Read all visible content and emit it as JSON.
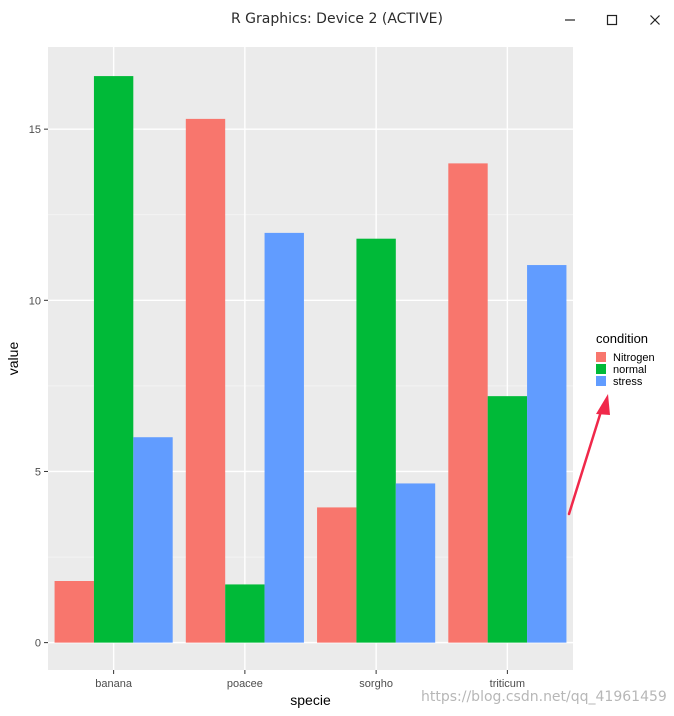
{
  "window": {
    "title": "R Graphics: Device 2 (ACTIVE)",
    "buttons": [
      "minimize-icon",
      "maximize-icon",
      "close-icon"
    ]
  },
  "chart_data": {
    "type": "bar",
    "title": "",
    "xlabel": "specie",
    "ylabel": "value",
    "categories": [
      "banana",
      "poacee",
      "sorgho",
      "triticum"
    ],
    "series": [
      {
        "name": "Nitrogen",
        "values": [
          1.8,
          15.3,
          3.95,
          14.0
        ],
        "color": "#F8766D"
      },
      {
        "name": "normal",
        "values": [
          16.55,
          1.7,
          11.8,
          7.2
        ],
        "color": "#00BA38"
      },
      {
        "name": "stress",
        "values": [
          6.0,
          11.97,
          4.65,
          11.03
        ],
        "color": "#619CFF"
      }
    ],
    "ylim": [
      -0.8,
      17.4
    ],
    "yticks": [
      0,
      5,
      10,
      15
    ],
    "ytick_labels": [
      "0",
      "5",
      "10",
      "15"
    ],
    "grid": true,
    "panel_background": "#EBEBEB",
    "legend": {
      "title": "condition",
      "position": "right"
    },
    "annotation": {
      "type": "arrow",
      "color": "#F0284A",
      "points_to": "legend"
    }
  },
  "watermark": "https://blog.csdn.net/qq_41961459"
}
